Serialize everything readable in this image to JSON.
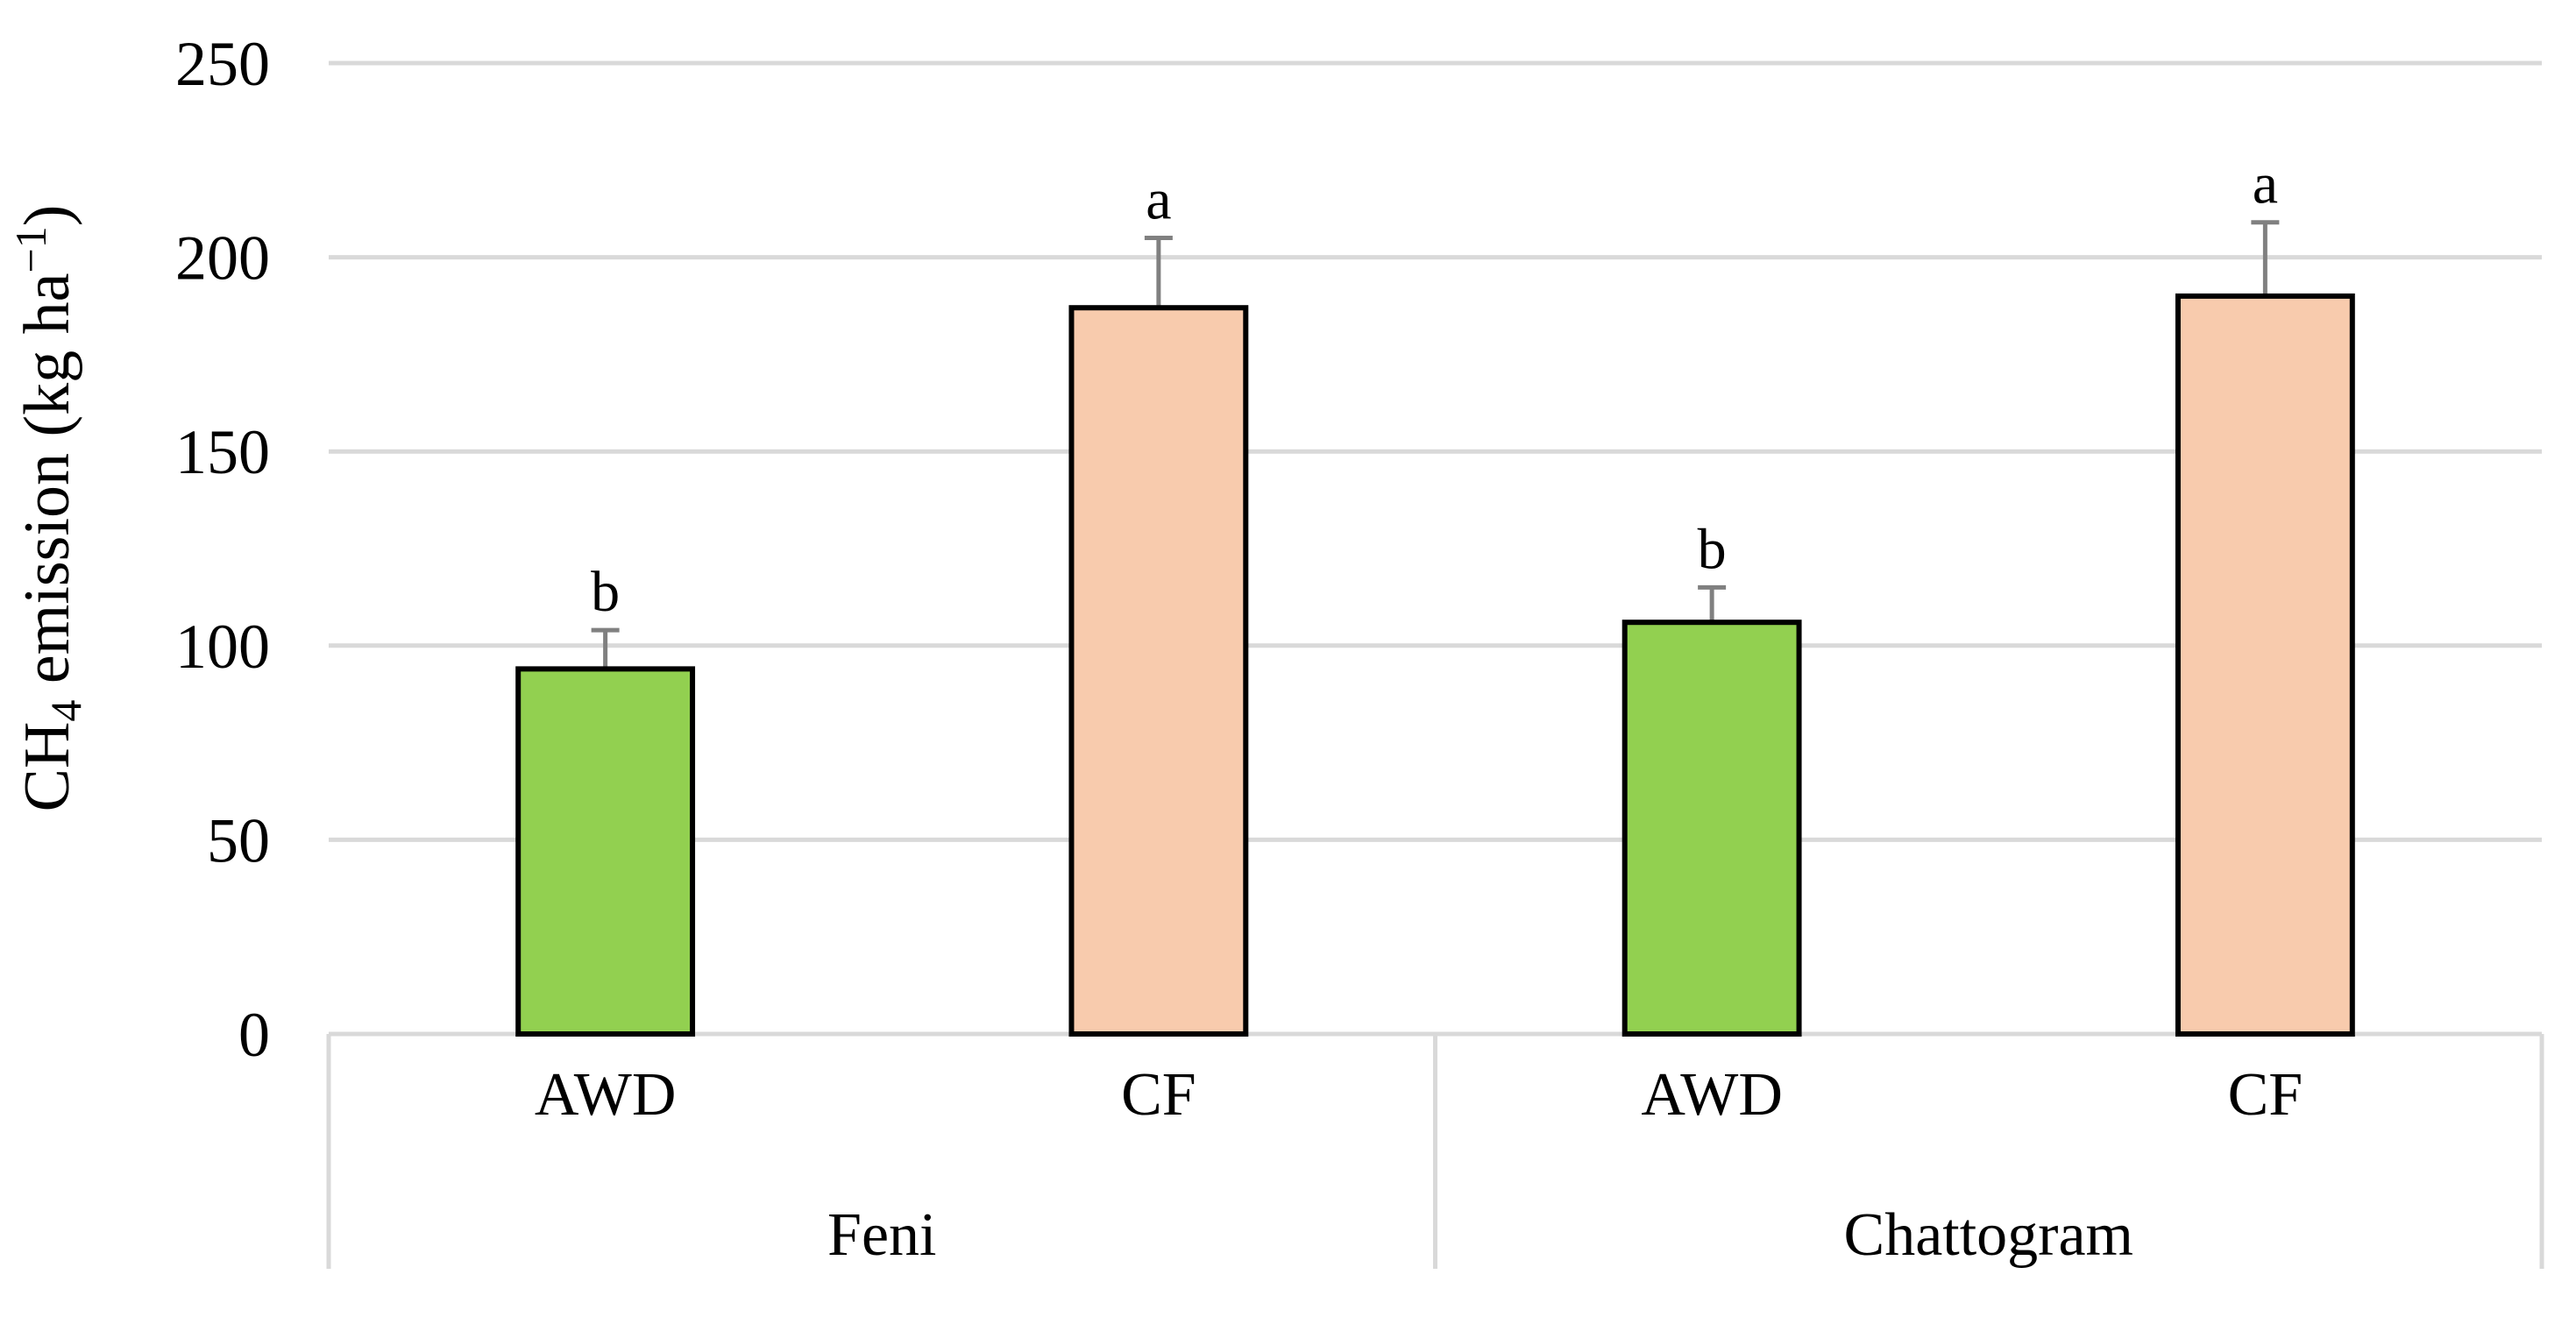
{
  "chart_data": {
    "type": "bar",
    "title": "",
    "ylabel": {
      "main": "CH",
      "sub": "4",
      "middle": " emission (kg ha",
      "sup": "−1",
      "end": ")"
    },
    "ylim": [
      0,
      250
    ],
    "yticks": [
      0,
      50,
      100,
      150,
      200,
      250
    ],
    "grid": true,
    "groups": [
      {
        "name": "Feni",
        "bars": [
          {
            "category": "AWD",
            "value": 94,
            "error": 10,
            "letter": "b",
            "color": "#92d050"
          },
          {
            "category": "CF",
            "value": 187,
            "error": 18,
            "letter": "a",
            "color": "#f8cbad"
          }
        ]
      },
      {
        "name": "Chattogram",
        "bars": [
          {
            "category": "AWD",
            "value": 106,
            "error": 9,
            "letter": "b",
            "color": "#92d050"
          },
          {
            "category": "CF",
            "value": 190,
            "error": 19,
            "letter": "a",
            "color": "#f8cbad"
          }
        ]
      }
    ],
    "colors": {
      "gridline": "#d9d9d9",
      "axis": "#d9d9d9",
      "bar_border": "#000000",
      "error_bar": "#808080"
    }
  }
}
